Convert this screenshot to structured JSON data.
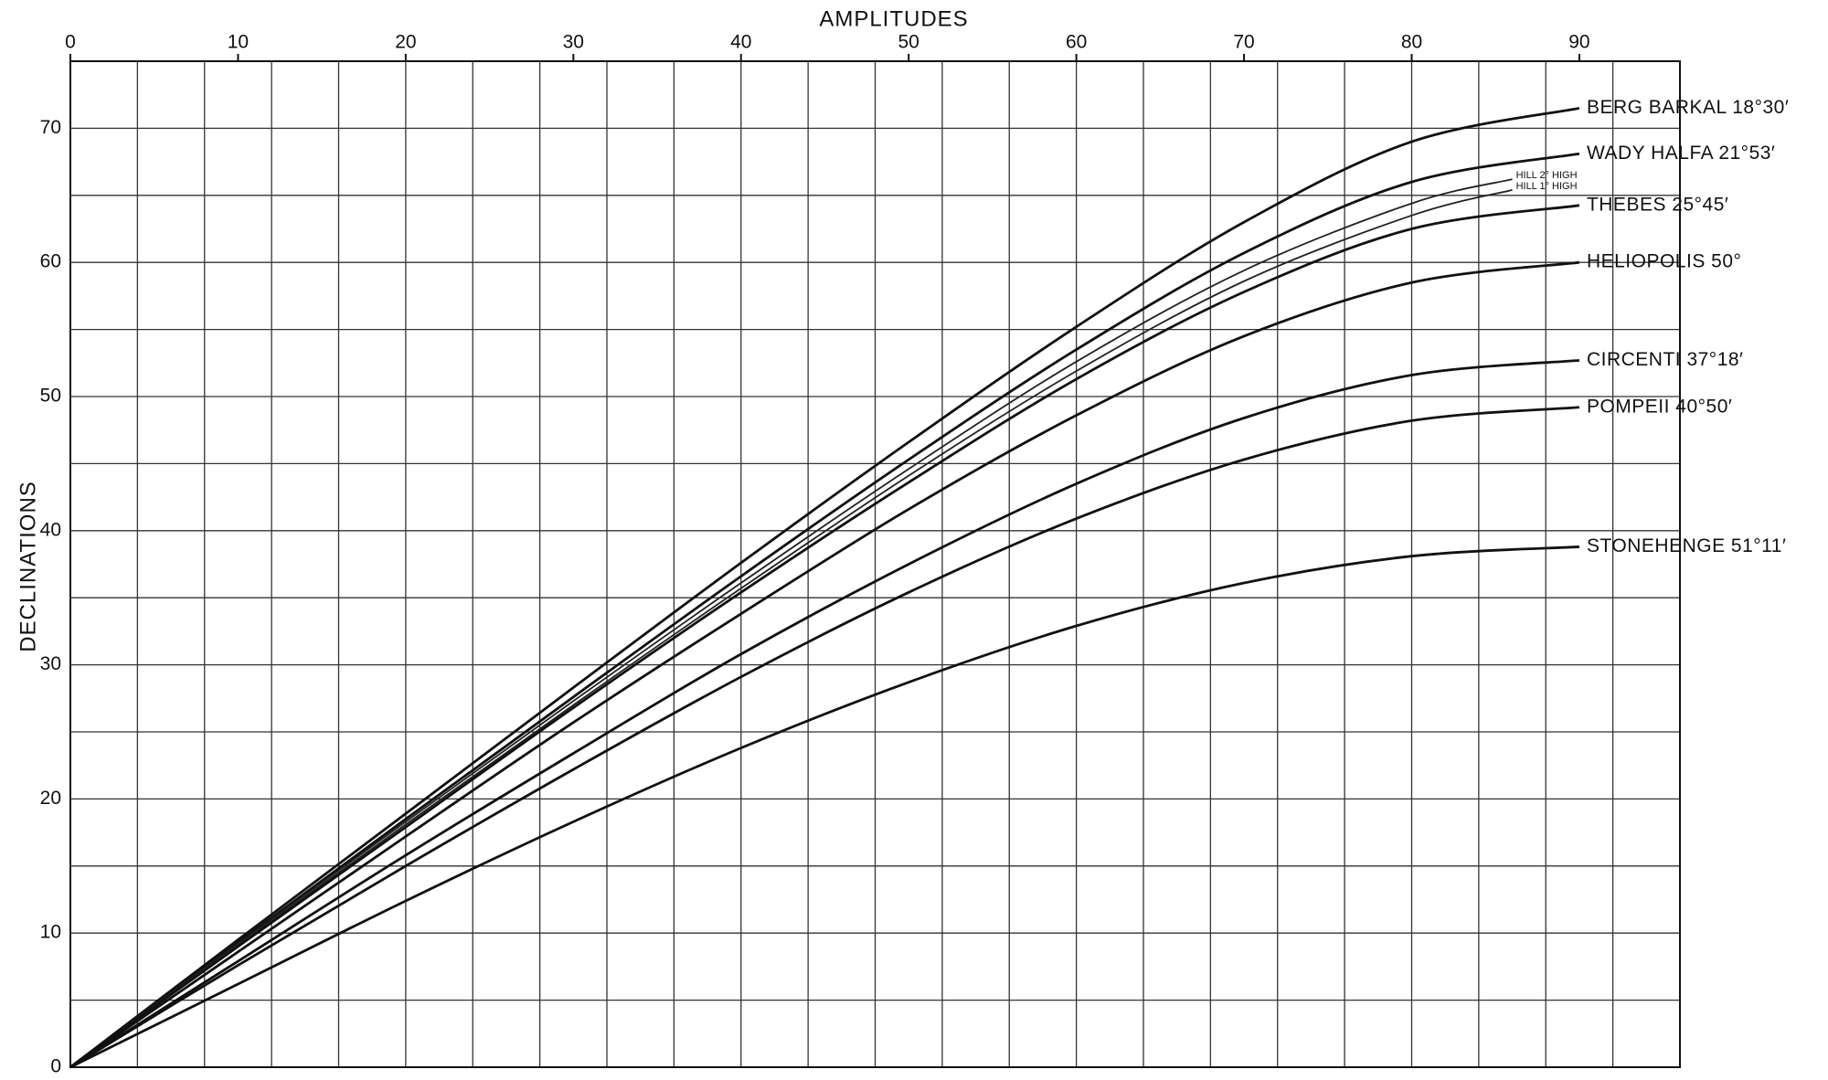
{
  "chart_data": {
    "type": "line",
    "xlabel": "AMPLITUDES",
    "ylabel": "DECLINATIONS",
    "xlim": [
      0,
      96
    ],
    "ylim": [
      0,
      75
    ],
    "xticks": [
      0,
      10,
      20,
      30,
      40,
      50,
      60,
      70,
      80,
      90
    ],
    "yticks": [
      0,
      10,
      20,
      30,
      40,
      50,
      60,
      70
    ],
    "xgridlines": [
      0,
      4,
      8,
      12,
      16,
      20,
      24,
      28,
      32,
      36,
      40,
      44,
      48,
      52,
      56,
      60,
      64,
      68,
      72,
      76,
      80,
      84,
      88,
      92,
      96
    ],
    "ygridlines": [
      0,
      5,
      10,
      15,
      20,
      25,
      30,
      35,
      40,
      45,
      50,
      55,
      60,
      65,
      70,
      75
    ],
    "grid": true,
    "series": [
      {
        "name": "BERG BARKAL 18°30′",
        "color": "#111111",
        "x": [
          0,
          10,
          20,
          30,
          40,
          50,
          60,
          70,
          80,
          90
        ],
        "values": [
          0,
          9.5,
          18.9,
          28.3,
          37.6,
          46.6,
          55.2,
          63.0,
          69.0,
          71.5
        ]
      },
      {
        "name": "WADY HALFA 21°53′",
        "color": "#111111",
        "x": [
          0,
          10,
          20,
          30,
          40,
          50,
          60,
          70,
          80,
          90
        ],
        "values": [
          0,
          9.3,
          18.5,
          27.6,
          36.6,
          45.3,
          53.5,
          60.7,
          66.0,
          68.1
        ]
      },
      {
        "name": "HILL 2° HIGH",
        "color": "#222222",
        "x": [
          0,
          10,
          20,
          30,
          40,
          50,
          60,
          70,
          80,
          86
        ],
        "values": [
          0,
          9.2,
          18.3,
          27.3,
          36.1,
          44.6,
          52.6,
          59.4,
          64.4,
          66.2
        ]
      },
      {
        "name": "HILL 1° HIGH",
        "color": "#222222",
        "x": [
          0,
          10,
          20,
          30,
          40,
          50,
          60,
          70,
          80,
          86
        ],
        "values": [
          0,
          9.1,
          18.1,
          27.0,
          35.7,
          44.1,
          51.9,
          58.6,
          63.5,
          65.4
        ]
      },
      {
        "name": "THEBES 25°45′",
        "color": "#111111",
        "x": [
          0,
          10,
          20,
          30,
          40,
          50,
          60,
          70,
          80,
          90
        ],
        "values": [
          0,
          9.0,
          17.9,
          26.8,
          35.4,
          43.6,
          51.3,
          57.8,
          62.5,
          64.25
        ]
      },
      {
        "name": "HELIOPOLIS 50°",
        "color": "#111111",
        "x": [
          0,
          10,
          20,
          30,
          40,
          50,
          60,
          70,
          80,
          90
        ],
        "values": [
          0,
          8.6,
          17.2,
          25.7,
          33.8,
          41.6,
          48.6,
          54.5,
          58.5,
          60
        ]
      },
      {
        "name": "CIRCENTI 37°18′",
        "color": "#111111",
        "x": [
          0,
          10,
          20,
          30,
          40,
          50,
          60,
          70,
          80,
          90
        ],
        "values": [
          0,
          7.9,
          15.8,
          23.4,
          30.8,
          37.5,
          43.5,
          48.4,
          51.6,
          52.7
        ]
      },
      {
        "name": "POMPEII 40°50′",
        "color": "#111111",
        "x": [
          0,
          10,
          20,
          30,
          40,
          50,
          60,
          70,
          80,
          90
        ],
        "values": [
          0,
          7.6,
          15.0,
          22.2,
          29.1,
          35.4,
          40.9,
          45.3,
          48.2,
          49.2
        ]
      },
      {
        "name": "STONEHENGE 51°11′",
        "color": "#111111",
        "x": [
          0,
          10,
          20,
          30,
          40,
          50,
          60,
          70,
          80,
          90
        ],
        "values": [
          0,
          6.2,
          12.4,
          18.3,
          23.8,
          28.7,
          32.9,
          36.1,
          38.1,
          38.8
        ]
      }
    ]
  }
}
